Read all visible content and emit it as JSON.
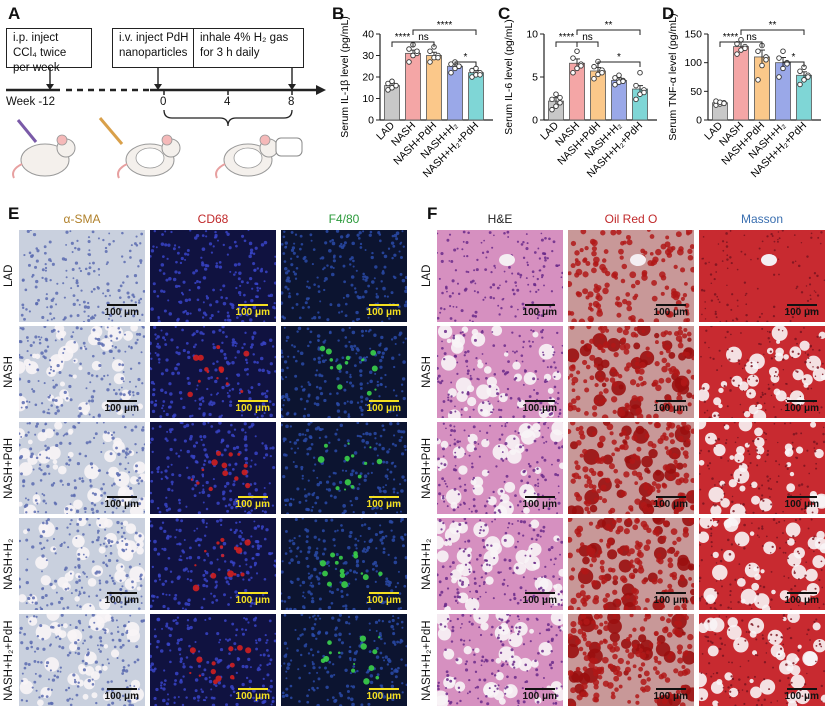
{
  "panels": {
    "A": {
      "label": "A",
      "box1": "i.p. inject CCl₄ twice per week",
      "box2": "i.v. inject PdH nanoparticles",
      "box3": "inhale 4% H₂ gas for 3 h daily",
      "week_label": "Week -12",
      "ticks": [
        "0",
        "4",
        "8"
      ]
    },
    "B": {
      "label": "B"
    },
    "C": {
      "label": "C"
    },
    "D": {
      "label": "D"
    },
    "E": {
      "label": "E",
      "columns": [
        "α-SMA",
        "CD68",
        "F4/80"
      ],
      "column_colors": [
        "#b0802a",
        "#c0282a",
        "#2a9a3a"
      ]
    },
    "F": {
      "label": "F",
      "columns": [
        "H&E",
        "Oil Red O",
        "Masson"
      ],
      "column_colors": [
        "#222222",
        "#c0282a",
        "#3a6fb0"
      ]
    },
    "rows": [
      "LAD",
      "NASH",
      "NASH+PdH",
      "NASH+H₂",
      "NASH+H₂+PdH"
    ],
    "scale_bar": "100 μm"
  },
  "chart_data": [
    {
      "type": "bar",
      "panel": "B",
      "categories": [
        "LAD",
        "NASH",
        "NASH+PdH",
        "NASH+H₂",
        "NASH+H₂+PdH"
      ],
      "values": [
        16,
        31,
        30,
        25,
        22
      ],
      "errors": [
        1.2,
        1.5,
        1.5,
        1.2,
        1.0
      ],
      "points": [
        [
          14,
          15,
          16,
          17,
          18,
          16
        ],
        [
          27,
          30,
          31,
          33,
          35,
          32
        ],
        [
          27,
          29,
          30,
          32,
          34,
          29
        ],
        [
          22,
          24,
          25,
          26,
          27,
          25
        ],
        [
          20,
          21,
          22,
          23,
          24,
          21
        ]
      ],
      "colors": [
        "#c8c8c8",
        "#f4a6a6",
        "#fbc88a",
        "#9aa8e8",
        "#7fd6d6"
      ],
      "ylabel": "Serum IL-1β level (pg/mL)",
      "ylim": [
        0,
        40
      ],
      "yticks": [
        0,
        10,
        20,
        30,
        40
      ],
      "significance": [
        {
          "from": 0,
          "to": 1,
          "text": "****",
          "level": 0
        },
        {
          "from": 1,
          "to": 2,
          "text": "ns",
          "level": 1
        },
        {
          "from": 1,
          "to": 4,
          "text": "****",
          "level": 2
        },
        {
          "from": 3,
          "to": 4,
          "text": "*",
          "level": 3
        }
      ]
    },
    {
      "type": "bar",
      "panel": "C",
      "categories": [
        "LAD",
        "NASH",
        "NASH+PdH",
        "NASH+H₂",
        "NASH+H₂+PdH"
      ],
      "values": [
        2.2,
        6.6,
        5.7,
        4.6,
        3.6
      ],
      "errors": [
        0.4,
        0.5,
        0.4,
        0.3,
        0.4
      ],
      "points": [
        [
          1.2,
          1.6,
          2.0,
          2.4,
          3.0,
          2.6
        ],
        [
          5.5,
          6.0,
          6.5,
          7.2,
          8.0,
          6.3
        ],
        [
          4.8,
          5.3,
          5.8,
          6.2,
          6.8,
          5.5
        ],
        [
          4.1,
          4.4,
          4.6,
          4.9,
          5.2,
          4.5
        ],
        [
          2.4,
          3.0,
          3.5,
          4.0,
          5.5,
          3.2
        ]
      ],
      "colors": [
        "#c8c8c8",
        "#f4a6a6",
        "#fbc88a",
        "#9aa8e8",
        "#7fd6d6"
      ],
      "ylabel": "Serum IL-6 level (pg/mL)",
      "ylim": [
        0,
        10
      ],
      "yticks": [
        0,
        5,
        10
      ],
      "significance": [
        {
          "from": 0,
          "to": 1,
          "text": "****",
          "level": 0
        },
        {
          "from": 1,
          "to": 2,
          "text": "ns",
          "level": 1
        },
        {
          "from": 1,
          "to": 4,
          "text": "**",
          "level": 2
        },
        {
          "from": 2,
          "to": 4,
          "text": "*",
          "level": 3
        }
      ]
    },
    {
      "type": "bar",
      "panel": "D",
      "categories": [
        "LAD",
        "NASH",
        "NASH+PdH",
        "NASH+H₂",
        "NASH+H₂+PdH"
      ],
      "values": [
        30,
        128,
        110,
        100,
        78
      ],
      "errors": [
        3,
        8,
        12,
        9,
        6
      ],
      "points": [
        [
          26,
          28,
          30,
          33,
          31,
          29
        ],
        [
          115,
          122,
          128,
          133,
          140,
          125
        ],
        [
          70,
          95,
          110,
          120,
          130,
          105
        ],
        [
          75,
          90,
          100,
          108,
          120,
          98
        ],
        [
          62,
          70,
          78,
          85,
          92,
          75
        ]
      ],
      "colors": [
        "#c8c8c8",
        "#f4a6a6",
        "#fbc88a",
        "#9aa8e8",
        "#7fd6d6"
      ],
      "ylabel": "Serum TNF-α level (pg/mL)",
      "ylim": [
        0,
        150
      ],
      "yticks": [
        0,
        50,
        100,
        150
      ],
      "significance": [
        {
          "from": 0,
          "to": 1,
          "text": "****",
          "level": 0
        },
        {
          "from": 1,
          "to": 2,
          "text": "ns",
          "level": 1
        },
        {
          "from": 1,
          "to": 4,
          "text": "**",
          "level": 2
        },
        {
          "from": 3,
          "to": 4,
          "text": "*",
          "level": 3
        }
      ]
    }
  ]
}
